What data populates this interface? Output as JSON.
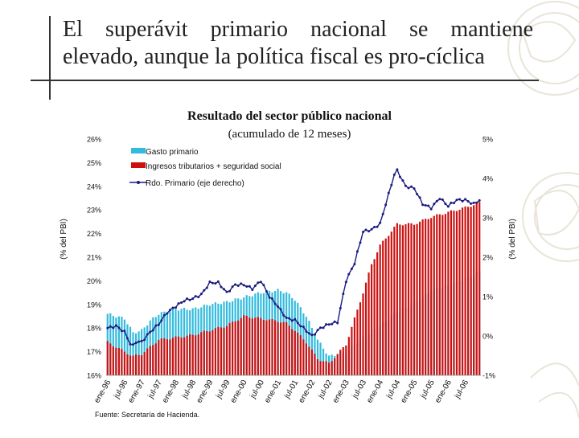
{
  "slide": {
    "title_line1": "El superávit primario nacional se mantiene",
    "title_line2": "elevado, aunque la política fiscal es pro-cíclica",
    "source": "Fuente: Secretaría de Hacienda."
  },
  "chart_data": {
    "type": "bar",
    "title": "Resultado del sector público nacional",
    "subtitle": "(acumulado de 12 meses)",
    "ylabel_left": "(% del PBI)",
    "ylabel_right": "(% del PBI)",
    "ylim_left": [
      16,
      26
    ],
    "ylim_right": [
      -1,
      5
    ],
    "left_ticks": [
      "26%",
      "25%",
      "24%",
      "23%",
      "22%",
      "21%",
      "20%",
      "19%",
      "18%",
      "17%",
      "16%"
    ],
    "right_ticks": [
      "5%",
      "4%",
      "3%",
      "2%",
      "1%",
      "0%",
      "-1%"
    ],
    "x_tick_labels": [
      "ene-96",
      "jul-96",
      "ene-97",
      "jul-97",
      "ene-98",
      "jul-98",
      "ene-99",
      "jul-99",
      "ene-00",
      "jul-00",
      "ene-01",
      "jul-01",
      "ene-02",
      "jul-02",
      "ene-03",
      "jul-03",
      "ene-04",
      "jul-04",
      "ene-05",
      "jul-05",
      "ene-06",
      "jul-06"
    ],
    "legend": [
      "Gasto primario",
      "Ingresos tributarios + seguridad social",
      "Rdo. Primario (eje derecho)"
    ],
    "legend_position": "top-left",
    "colors": {
      "gasto": "#33bbdd",
      "ingresos": "#cc1111",
      "resultado": "#1a1a80"
    },
    "series_anchors": [
      {
        "name": "Gasto primario",
        "axis": "left",
        "x": [
          0,
          6,
          9,
          12,
          15,
          18,
          24,
          30,
          36,
          42,
          48,
          54,
          60,
          63,
          66,
          70,
          74,
          78,
          84,
          90,
          96,
          102,
          108,
          114,
          120,
          126,
          131
        ],
        "values": [
          18.6,
          18.4,
          17.8,
          17.9,
          18.3,
          18.6,
          18.8,
          18.8,
          19.0,
          19.1,
          19.3,
          19.5,
          19.6,
          19.5,
          19.2,
          18.5,
          17.5,
          16.8,
          17.0,
          17.6,
          18.1,
          18.7,
          19.0,
          19.6,
          19.8,
          20.1,
          20.4
        ]
      },
      {
        "name": "Ingresos tributarios + seguridad social",
        "axis": "left",
        "x": [
          0,
          6,
          9,
          12,
          15,
          18,
          24,
          30,
          36,
          42,
          48,
          54,
          60,
          63,
          66,
          70,
          74,
          78,
          84,
          87,
          90,
          93,
          96,
          102,
          108,
          114,
          120,
          126,
          131
        ],
        "values": [
          17.4,
          17.0,
          16.8,
          16.9,
          17.2,
          17.5,
          17.6,
          17.7,
          17.9,
          18.1,
          18.5,
          18.4,
          18.3,
          18.2,
          17.9,
          17.4,
          16.7,
          16.5,
          17.3,
          18.4,
          19.5,
          20.7,
          21.5,
          22.4,
          22.4,
          22.7,
          22.9,
          23.1,
          23.3
        ]
      },
      {
        "name": "Rdo. Primario (eje derecho)",
        "axis": "right",
        "x": [
          0,
          3,
          6,
          8,
          9,
          10,
          12,
          15,
          18,
          21,
          24,
          27,
          30,
          33,
          36,
          39,
          42,
          45,
          48,
          51,
          54,
          57,
          60,
          63,
          66,
          69,
          72,
          75,
          78,
          81,
          84,
          87,
          90,
          93,
          96,
          99,
          101,
          102,
          105,
          108,
          111,
          114,
          117,
          120,
          123,
          126,
          129,
          131
        ],
        "values": [
          0.2,
          0.25,
          0.1,
          -0.2,
          -0.25,
          -0.15,
          -0.15,
          0.1,
          0.3,
          0.6,
          0.75,
          0.9,
          0.95,
          1.05,
          1.35,
          1.35,
          1.1,
          1.3,
          1.3,
          1.2,
          1.4,
          1.0,
          0.75,
          0.45,
          0.4,
          0.2,
          0.0,
          0.2,
          0.3,
          0.35,
          1.4,
          1.85,
          2.65,
          2.7,
          2.85,
          3.6,
          4.1,
          4.2,
          3.8,
          3.75,
          3.35,
          3.25,
          3.5,
          3.3,
          3.45,
          3.45,
          3.35,
          3.45
        ]
      }
    ],
    "n_months": 132
  }
}
